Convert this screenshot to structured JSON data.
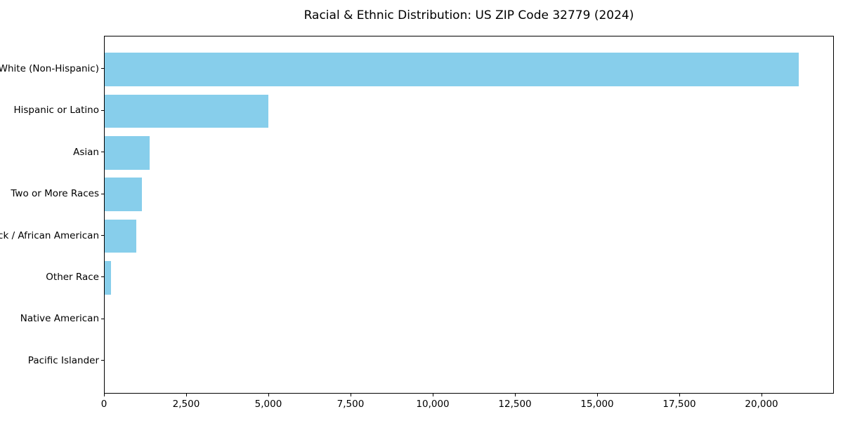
{
  "chart_data": {
    "type": "bar",
    "orientation": "horizontal",
    "title": "Racial & Ethnic Distribution: US ZIP Code 32779 (2024)",
    "categories": [
      "White (Non-Hispanic)",
      "Hispanic or Latino",
      "Asian",
      "Two or More Races",
      "Black / African American",
      "Other Race",
      "Native American",
      "Pacific Islander"
    ],
    "values": [
      21100,
      4980,
      1360,
      1130,
      950,
      190,
      0,
      0
    ],
    "xlabel": "",
    "ylabel": "",
    "xlim": [
      0,
      22200
    ],
    "x_ticks": [
      0,
      2500,
      5000,
      7500,
      10000,
      12500,
      15000,
      17500,
      20000
    ],
    "x_tick_labels": [
      "0",
      "2,500",
      "5,000",
      "7,500",
      "10,000",
      "12,500",
      "15,000",
      "17,500",
      "20,000"
    ],
    "bar_color": "#87ceeb",
    "text_color": "#000000",
    "background_color": "#ffffff",
    "grid": false,
    "legend": null
  }
}
